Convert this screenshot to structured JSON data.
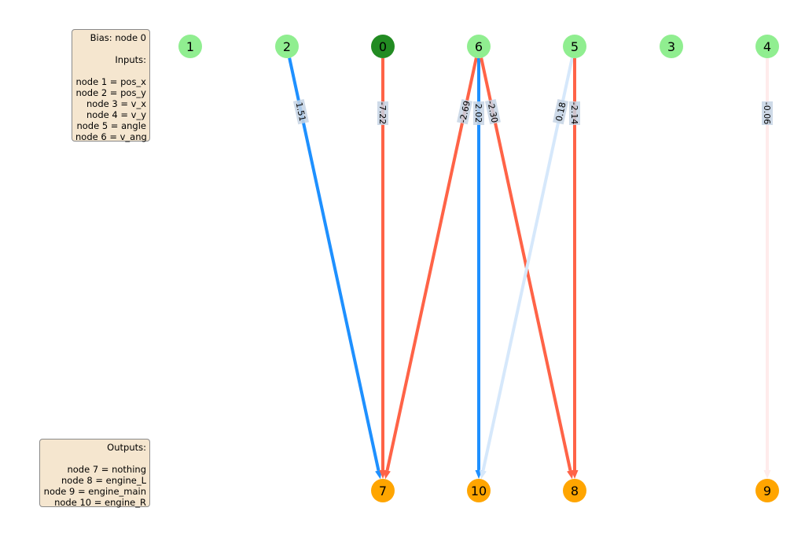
{
  "info_panels": {
    "bias": {
      "title": "Bias: node 0",
      "inputs_heading": "Inputs:",
      "lines": [
        "node 1 = pos_x",
        "node 2 = pos_y",
        "node 3 = v_x",
        "node 4 = v_y",
        "node 5 = angle",
        "node 6 = v_ang"
      ]
    },
    "outputs": {
      "heading": "Outputs:",
      "lines": [
        "node 7 = nothing",
        "node 8 = engine_L",
        "node 9 = engine_main",
        "node 10 = engine_R"
      ]
    }
  },
  "nodes": [
    {
      "id": "1",
      "role": "input",
      "color": "#90ee90"
    },
    {
      "id": "2",
      "role": "input",
      "color": "#90ee90"
    },
    {
      "id": "0",
      "role": "bias",
      "color": "#228b22"
    },
    {
      "id": "6",
      "role": "input",
      "color": "#90ee90"
    },
    {
      "id": "5",
      "role": "input",
      "color": "#90ee90"
    },
    {
      "id": "3",
      "role": "input",
      "color": "#90ee90"
    },
    {
      "id": "4",
      "role": "input",
      "color": "#90ee90"
    },
    {
      "id": "7",
      "role": "output",
      "color": "#ffa500"
    },
    {
      "id": "10",
      "role": "output",
      "color": "#ffa500"
    },
    {
      "id": "8",
      "role": "output",
      "color": "#ffa500"
    },
    {
      "id": "9",
      "role": "output",
      "color": "#ffa500"
    }
  ],
  "edges": [
    {
      "from": "2",
      "to": "7",
      "weight": "1.51",
      "color": "#1e90ff"
    },
    {
      "from": "0",
      "to": "7",
      "weight": "-7.22",
      "color": "#ff6347"
    },
    {
      "from": "6",
      "to": "7",
      "weight": "-2.69",
      "color": "#ff6347"
    },
    {
      "from": "6",
      "to": "10",
      "weight": "2.02",
      "color": "#1e90ff"
    },
    {
      "from": "6",
      "to": "8",
      "weight": "-2.30",
      "color": "#ff6347"
    },
    {
      "from": "5",
      "to": "10",
      "weight": "0.18",
      "color": "#d6e8fb"
    },
    {
      "from": "5",
      "to": "8",
      "weight": "-2.14",
      "color": "#ff6347"
    },
    {
      "from": "4",
      "to": "9",
      "weight": "-0.06",
      "color": "#ffebeb"
    }
  ]
}
